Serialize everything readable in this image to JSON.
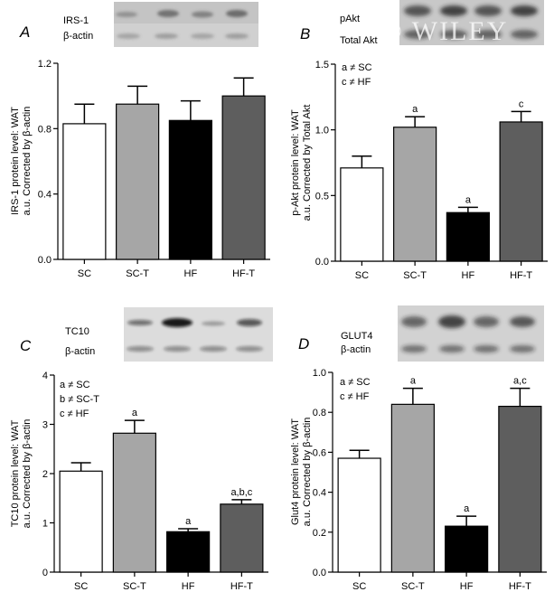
{
  "watermark": "© WILEY",
  "chart_data": [
    {
      "type": "bar",
      "panel": "A",
      "categories": [
        "SC",
        "SC-T",
        "HF",
        "HF-T"
      ],
      "values": [
        0.83,
        0.95,
        0.85,
        1.0
      ],
      "errors": [
        0.12,
        0.11,
        0.12,
        0.11
      ],
      "bar_colors": [
        "#ffffff",
        "#a6a6a6",
        "#000000",
        "#5e5e5e"
      ],
      "significance": [
        "",
        "",
        "",
        ""
      ],
      "ylabel": [
        "IRS-1 protein level: WAT",
        "a.u. Corrected by β-actin"
      ],
      "ylim": [
        0,
        1.2
      ],
      "yticks": [
        "0.0",
        "0.4",
        "0.8",
        "1.2"
      ],
      "ytick_values": [
        0,
        0.4,
        0.8,
        1.2
      ],
      "legend": [],
      "blot_labels": [
        "IRS-1",
        "β-actin"
      ]
    },
    {
      "type": "bar",
      "panel": "B",
      "categories": [
        "SC",
        "SC-T",
        "HF",
        "HF-T"
      ],
      "values": [
        0.71,
        1.02,
        0.37,
        1.06
      ],
      "errors": [
        0.09,
        0.08,
        0.04,
        0.08
      ],
      "bar_colors": [
        "#ffffff",
        "#a6a6a6",
        "#000000",
        "#5e5e5e"
      ],
      "significance": [
        "",
        "a",
        "a",
        "c"
      ],
      "ylabel": [
        "p-Akt protein level: WAT",
        "a.u. Corrected by Total Akt"
      ],
      "ylim": [
        0,
        1.5
      ],
      "yticks": [
        "0.0",
        "0.5",
        "1.0",
        "1.5"
      ],
      "ytick_values": [
        0,
        0.5,
        1.0,
        1.5
      ],
      "legend": [
        "a ≠ SC",
        "c ≠ HF"
      ],
      "blot_labels": [
        "pAkt",
        "Total Akt"
      ]
    },
    {
      "type": "bar",
      "panel": "C",
      "categories": [
        "SC",
        "SC-T",
        "HF",
        "HF-T"
      ],
      "values": [
        2.05,
        2.82,
        0.82,
        1.38
      ],
      "errors": [
        0.17,
        0.26,
        0.06,
        0.09
      ],
      "bar_colors": [
        "#ffffff",
        "#a6a6a6",
        "#000000",
        "#5e5e5e"
      ],
      "significance": [
        "",
        "a",
        "a",
        "a,b,c"
      ],
      "ylabel": [
        "TC10 protein level: WAT",
        "a.u. Corrected by β-actin"
      ],
      "ylim": [
        0,
        4
      ],
      "yticks": [
        "0",
        "1",
        "2",
        "3",
        "4"
      ],
      "ytick_values": [
        0,
        1,
        2,
        3,
        4
      ],
      "legend": [
        "a ≠ SC",
        "b ≠ SC-T",
        "c ≠ HF"
      ],
      "blot_labels": [
        "TC10",
        "β-actin"
      ]
    },
    {
      "type": "bar",
      "panel": "D",
      "categories": [
        "SC",
        "SC-T",
        "HF",
        "HF-T"
      ],
      "values": [
        0.57,
        0.84,
        0.23,
        0.83
      ],
      "errors": [
        0.04,
        0.08,
        0.05,
        0.09
      ],
      "bar_colors": [
        "#ffffff",
        "#a6a6a6",
        "#000000",
        "#5e5e5e"
      ],
      "significance": [
        "",
        "a",
        "a",
        "a,c"
      ],
      "ylabel": [
        "Glut4 protein level: WAT",
        "a.u. Corrected by β-actin"
      ],
      "ylim": [
        0,
        1.0
      ],
      "yticks": [
        "0.0",
        "0.2",
        "0.4",
        "0.6",
        "0.8",
        "1.0"
      ],
      "ytick_values": [
        0,
        0.2,
        0.4,
        0.6,
        0.8,
        1.0
      ],
      "legend": [
        "a ≠ SC",
        "c ≠ HF"
      ],
      "blot_labels": [
        "GLUT4",
        "β-actin"
      ]
    }
  ]
}
